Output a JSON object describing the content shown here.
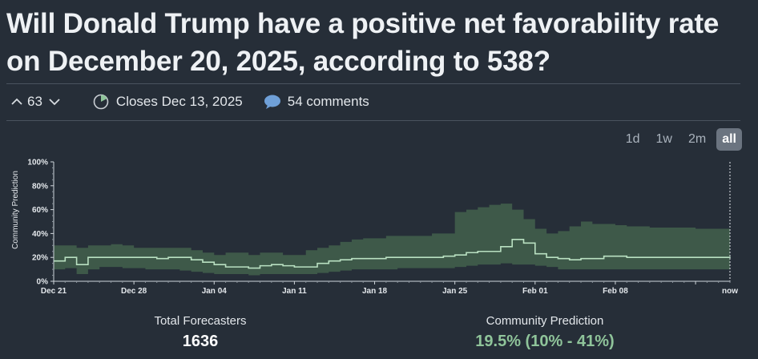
{
  "title": "Will Donald Trump have a positive net favorability rate on December 20, 2025, according to 538?",
  "votes": {
    "count": "63"
  },
  "closes": {
    "label": "Closes Dec 13, 2025"
  },
  "comments": {
    "label": "54 comments"
  },
  "range": {
    "options": [
      "1d",
      "1w",
      "2m",
      "all"
    ],
    "selected": "all"
  },
  "chart_data": {
    "type": "area",
    "ylabel": "Community Prediction",
    "yticks": [
      "0%",
      "20%",
      "40%",
      "60%",
      "80%",
      "100%"
    ],
    "ylim": [
      0,
      100
    ],
    "xticks": [
      "Dec 21",
      "Dec 28",
      "Jan 04",
      "Jan 11",
      "Jan 18",
      "Jan 25",
      "Feb 01",
      "Feb 08",
      "now"
    ],
    "xlim": [
      0,
      59
    ],
    "xtick_days": [
      0,
      7,
      14,
      21,
      28,
      35,
      42,
      49,
      59
    ],
    "series": [
      {
        "x": [
          0,
          1,
          2,
          3,
          4,
          5,
          6,
          7,
          8,
          9,
          10,
          11,
          12,
          13,
          14,
          15,
          16,
          17,
          18,
          19,
          20,
          21,
          22,
          23,
          24,
          25,
          26,
          27,
          28,
          29,
          30,
          31,
          32,
          33,
          34,
          35,
          36,
          37,
          38,
          39,
          40,
          41,
          42,
          43,
          44,
          45,
          46,
          47,
          48,
          49,
          50,
          51,
          52,
          53,
          54,
          55,
          56,
          57,
          58,
          59
        ],
        "median": [
          17,
          20,
          14,
          20,
          20,
          20,
          20,
          20,
          20,
          19,
          20,
          20,
          18,
          16,
          14,
          12,
          12,
          11,
          13,
          14,
          13,
          12,
          12,
          15,
          17,
          18,
          19,
          19,
          19,
          20,
          20,
          20,
          20,
          20,
          21,
          22,
          24,
          25,
          25,
          29,
          35,
          32,
          23,
          20,
          19,
          18,
          19,
          19,
          21,
          21,
          20,
          20,
          20,
          20,
          20,
          20,
          20,
          20,
          20,
          19.5
        ],
        "lower": [
          10,
          11,
          6,
          10,
          12,
          12,
          11,
          11,
          10,
          10,
          10,
          9,
          8,
          7,
          6,
          6,
          6,
          5,
          6,
          6,
          6,
          6,
          6,
          7,
          8,
          9,
          10,
          10,
          10,
          10,
          11,
          11,
          11,
          11,
          11,
          12,
          13,
          14,
          14,
          15,
          14,
          14,
          13,
          12,
          10,
          10,
          10,
          10,
          10,
          10,
          10,
          10,
          10,
          10,
          10,
          10,
          10,
          10,
          10,
          10
        ],
        "upper": [
          30,
          30,
          28,
          30,
          30,
          31,
          30,
          28,
          28,
          28,
          28,
          28,
          26,
          24,
          22,
          24,
          24,
          22,
          24,
          24,
          22,
          22,
          26,
          28,
          30,
          33,
          35,
          36,
          36,
          38,
          38,
          38,
          38,
          40,
          40,
          58,
          60,
          62,
          64,
          65,
          60,
          52,
          44,
          40,
          42,
          46,
          50,
          48,
          48,
          47,
          46,
          46,
          45,
          45,
          45,
          45,
          44,
          44,
          44,
          41
        ]
      }
    ],
    "grid": false,
    "legend": "none"
  },
  "stats": {
    "forecasters_label": "Total Forecasters",
    "forecasters_value": "1636",
    "prediction_label": "Community Prediction",
    "prediction_value": "19.5% (10% - 41%)"
  }
}
